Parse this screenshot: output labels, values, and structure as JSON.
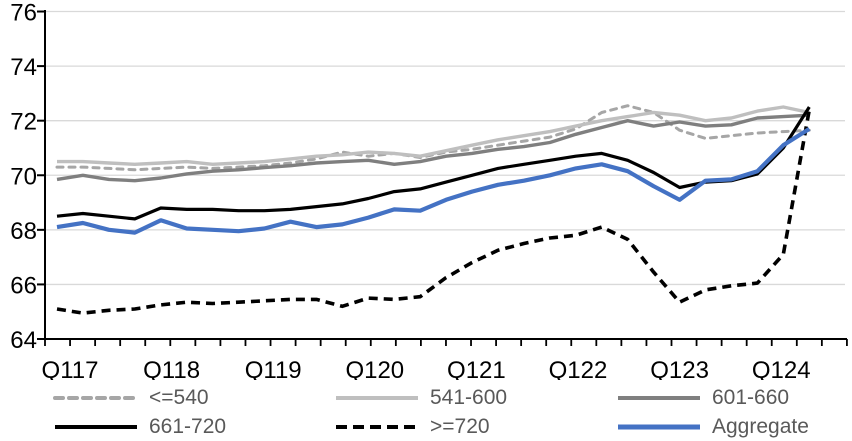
{
  "chart_data": {
    "type": "line",
    "title": "",
    "x_labels": [
      "Q117",
      "Q118",
      "Q119",
      "Q120",
      "Q121",
      "Q122",
      "Q123",
      "Q124"
    ],
    "x_quarters": [
      "Q1 2017",
      "Q2 2017",
      "Q3 2017",
      "Q4 2017",
      "Q1 2018",
      "Q2 2018",
      "Q3 2018",
      "Q4 2018",
      "Q1 2019",
      "Q2 2019",
      "Q3 2019",
      "Q4 2019",
      "Q1 2020",
      "Q2 2020",
      "Q3 2020",
      "Q4 2020",
      "Q1 2021",
      "Q2 2021",
      "Q3 2021",
      "Q4 2021",
      "Q1 2022",
      "Q2 2022",
      "Q3 2022",
      "Q4 2022",
      "Q1 2023",
      "Q2 2023",
      "Q3 2023",
      "Q4 2023",
      "Q1 2024",
      "Q2 2024"
    ],
    "ylim": [
      64,
      76
    ],
    "y_ticks": [
      64,
      66,
      68,
      70,
      72,
      74,
      76
    ],
    "grid": true,
    "legend_position": "bottom",
    "gridline_color": "#D9D9D9",
    "axis_color": "#000000",
    "legend_text_color": "#595959",
    "series": [
      {
        "name": "<=540",
        "color": "#A6A6A6",
        "line_style": "dashed",
        "values": [
          70.3,
          70.3,
          70.25,
          70.2,
          70.25,
          70.3,
          70.25,
          70.3,
          70.35,
          70.45,
          70.6,
          70.85,
          70.7,
          70.8,
          70.65,
          70.85,
          70.95,
          71.1,
          71.25,
          71.4,
          71.7,
          72.3,
          72.55,
          72.3,
          71.65,
          71.35,
          71.45,
          71.55,
          71.6,
          71.65
        ]
      },
      {
        "name": "541-600",
        "color": "#BFBFBF",
        "line_style": "solid",
        "values": [
          70.5,
          70.5,
          70.45,
          70.4,
          70.45,
          70.5,
          70.4,
          70.45,
          70.5,
          70.6,
          70.7,
          70.75,
          70.85,
          70.8,
          70.7,
          70.9,
          71.1,
          71.3,
          71.45,
          71.6,
          71.8,
          72.0,
          72.15,
          72.3,
          72.2,
          72.0,
          72.1,
          72.35,
          72.5,
          72.3
        ]
      },
      {
        "name": "601-660",
        "color": "#7F7F7F",
        "line_style": "solid",
        "values": [
          69.85,
          70.0,
          69.85,
          69.8,
          69.9,
          70.05,
          70.15,
          70.2,
          70.28,
          70.35,
          70.45,
          70.5,
          70.55,
          70.4,
          70.5,
          70.7,
          70.8,
          70.95,
          71.05,
          71.2,
          71.5,
          71.75,
          72.0,
          71.8,
          71.95,
          71.8,
          71.85,
          72.1,
          72.15,
          72.2
        ]
      },
      {
        "name": "661-720",
        "color": "#000000",
        "line_style": "solid",
        "values": [
          68.5,
          68.6,
          68.5,
          68.4,
          68.8,
          68.75,
          68.75,
          68.7,
          68.7,
          68.75,
          68.85,
          68.95,
          69.15,
          69.4,
          69.5,
          69.75,
          70.0,
          70.25,
          70.4,
          70.55,
          70.7,
          70.8,
          70.55,
          70.1,
          69.55,
          69.75,
          69.8,
          70.05,
          71.0,
          72.5
        ]
      },
      {
        "name": ">=720",
        "color": "#000000",
        "line_style": "dashed",
        "values": [
          65.1,
          64.95,
          65.05,
          65.1,
          65.25,
          65.35,
          65.3,
          65.35,
          65.4,
          65.45,
          65.45,
          65.2,
          65.5,
          65.45,
          65.55,
          66.25,
          66.8,
          67.25,
          67.5,
          67.7,
          67.8,
          68.1,
          67.65,
          66.45,
          65.35,
          65.8,
          65.95,
          66.05,
          67.1,
          72.4
        ]
      },
      {
        "name": "Aggregate",
        "color": "#4472C4",
        "line_style": "solid",
        "values": [
          68.1,
          68.25,
          68.0,
          67.9,
          68.35,
          68.05,
          68.0,
          67.95,
          68.05,
          68.3,
          68.1,
          68.2,
          68.45,
          68.75,
          68.7,
          69.1,
          69.4,
          69.65,
          69.8,
          70.0,
          70.25,
          70.4,
          70.15,
          69.6,
          69.1,
          69.8,
          69.85,
          70.15,
          71.1,
          71.7
        ]
      }
    ]
  }
}
